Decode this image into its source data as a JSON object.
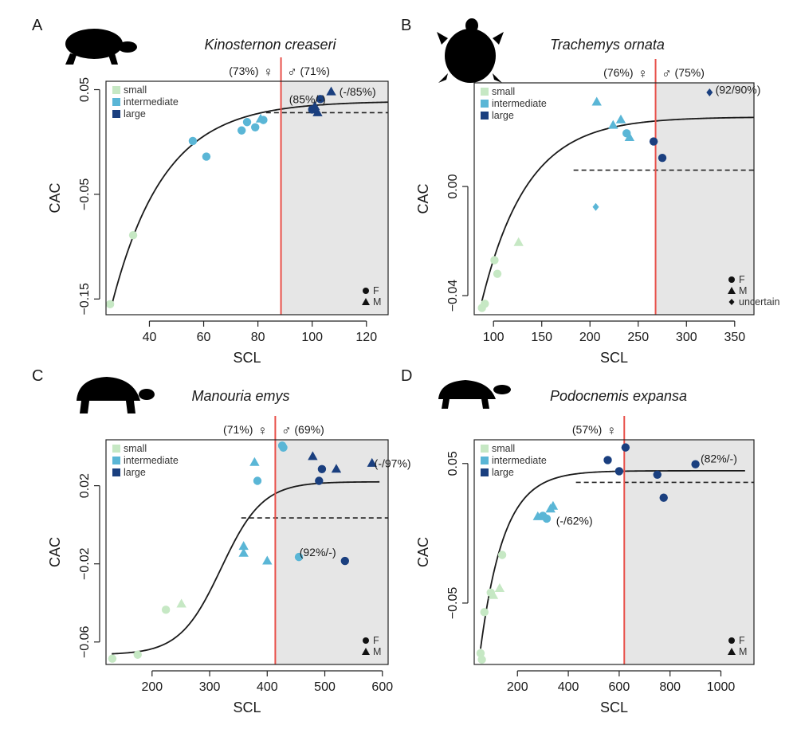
{
  "colors": {
    "small": "#c6e8c4",
    "intermediate": "#5ab6d6",
    "large": "#1a3f7f",
    "threshold": "#e8504a",
    "shade": "#e6e6e6",
    "curve": "#1a1a1a"
  },
  "legend": {
    "small": "small",
    "intermediate": "intermediate",
    "large": "large"
  },
  "shape_legend": {
    "F": "F",
    "M": "M",
    "uncertain": "uncertain"
  },
  "female_symbol": "♀",
  "male_symbol": "♂",
  "chart_data": [
    {
      "type": "scatter",
      "letter": "A",
      "title": "Kinosternon creaseri",
      "xlabel": "SCL",
      "ylabel": "CAC",
      "xlim": [
        24,
        128
      ],
      "ylim": [
        -0.165,
        0.058
      ],
      "xticks": [
        "40",
        "60",
        "80",
        "100",
        "120"
      ],
      "xtick_values": [
        40,
        60,
        80,
        100,
        120
      ],
      "yticks": [
        "0.05",
        "−0.05",
        "−0.15"
      ],
      "ytick_values": [
        0.05,
        -0.05,
        -0.15
      ],
      "threshold_x": 88.5,
      "dashed_y": 0.028,
      "dashed_x_start": 83,
      "curve": {
        "kind": "exp",
        "a": 0.039,
        "b": 0.196,
        "c": 0.052,
        "x0": 26
      },
      "female_label": "(73%)",
      "male_label": "(71%)",
      "shape_legend_keys": [
        "F",
        "M"
      ],
      "points": [
        {
          "x": 25.5,
          "y": -0.155,
          "size": "small",
          "shape": "circle"
        },
        {
          "x": 34,
          "y": -0.089,
          "size": "small",
          "shape": "circle"
        },
        {
          "x": 56,
          "y": 0.001,
          "size": "intermediate",
          "shape": "circle"
        },
        {
          "x": 61,
          "y": -0.014,
          "size": "intermediate",
          "shape": "circle"
        },
        {
          "x": 74,
          "y": 0.011,
          "size": "intermediate",
          "shape": "circle"
        },
        {
          "x": 76,
          "y": 0.019,
          "size": "intermediate",
          "shape": "circle"
        },
        {
          "x": 79,
          "y": 0.014,
          "size": "intermediate",
          "shape": "circle"
        },
        {
          "x": 81,
          "y": 0.022,
          "size": "intermediate",
          "shape": "triangle"
        },
        {
          "x": 82,
          "y": 0.021,
          "size": "intermediate",
          "shape": "circle"
        },
        {
          "x": 100,
          "y": 0.031,
          "size": "large",
          "shape": "circle"
        },
        {
          "x": 101,
          "y": 0.034,
          "size": "large",
          "shape": "triangle"
        },
        {
          "x": 102,
          "y": 0.028,
          "size": "large",
          "shape": "triangle"
        },
        {
          "x": 103,
          "y": 0.041,
          "size": "large",
          "shape": "circle"
        },
        {
          "x": 107,
          "y": 0.048,
          "size": "large",
          "shape": "triangle"
        }
      ],
      "annotations": [
        {
          "text": "(85%/-)",
          "x": 91.5,
          "y": 0.041
        },
        {
          "text": "(-/85%)",
          "x": 110,
          "y": 0.048
        }
      ]
    },
    {
      "type": "scatter",
      "letter": "B",
      "title": "Trachemys ornata",
      "xlabel": "SCL",
      "ylabel": "CAC",
      "xlim": [
        80,
        370
      ],
      "ylim": [
        -0.047,
        0.038
      ],
      "xticks": [
        "100",
        "150",
        "200",
        "250",
        "300",
        "350"
      ],
      "xtick_values": [
        100,
        150,
        200,
        250,
        300,
        350
      ],
      "yticks": [
        "0.00",
        "−0.04"
      ],
      "ytick_values": [
        0,
        -0.04
      ],
      "threshold_x": 268,
      "dashed_y": 0.006,
      "dashed_x_start": 183,
      "curve": {
        "kind": "exp",
        "a": 0.0255,
        "b": 0.0675,
        "c": 0.0212,
        "x0": 88
      },
      "female_label": "(76%)",
      "male_label": "(75%)",
      "shape_legend_keys": [
        "F",
        "M",
        "uncertain"
      ],
      "points": [
        {
          "x": 88,
          "y": -0.0445,
          "size": "small",
          "shape": "circle"
        },
        {
          "x": 91,
          "y": -0.043,
          "size": "small",
          "shape": "circle"
        },
        {
          "x": 101,
          "y": -0.027,
          "size": "small",
          "shape": "circle"
        },
        {
          "x": 104,
          "y": -0.032,
          "size": "small",
          "shape": "circle"
        },
        {
          "x": 126,
          "y": -0.0205,
          "size": "small",
          "shape": "triangle"
        },
        {
          "x": 206,
          "y": -0.0075,
          "size": "intermediate",
          "shape": "diamond"
        },
        {
          "x": 207,
          "y": 0.031,
          "size": "intermediate",
          "shape": "triangle"
        },
        {
          "x": 224,
          "y": 0.0225,
          "size": "intermediate",
          "shape": "triangle"
        },
        {
          "x": 232,
          "y": 0.0245,
          "size": "intermediate",
          "shape": "triangle"
        },
        {
          "x": 238,
          "y": 0.0195,
          "size": "intermediate",
          "shape": "circle"
        },
        {
          "x": 241,
          "y": 0.018,
          "size": "intermediate",
          "shape": "triangle"
        },
        {
          "x": 266,
          "y": 0.0165,
          "size": "large",
          "shape": "circle"
        },
        {
          "x": 275,
          "y": 0.0105,
          "size": "large",
          "shape": "circle"
        },
        {
          "x": 324,
          "y": 0.0345,
          "size": "large",
          "shape": "diamond"
        }
      ],
      "annotations": [
        {
          "text": "(92/90%)",
          "x": 330,
          "y": 0.0355
        }
      ]
    },
    {
      "type": "scatter",
      "letter": "C",
      "title": "Manouria emys",
      "xlabel": "SCL",
      "ylabel": "CAC",
      "xlim": [
        120,
        610
      ],
      "ylim": [
        -0.0715,
        0.0435
      ],
      "xticks": [
        "200",
        "300",
        "400",
        "500",
        "600"
      ],
      "xtick_values": [
        200,
        300,
        400,
        500,
        600
      ],
      "yticks": [
        "0.02",
        "−0.02",
        "−0.06"
      ],
      "ytick_values": [
        0.02,
        -0.02,
        -0.06
      ],
      "threshold_x": 414,
      "dashed_y": 0.0035,
      "dashed_x_start": 355,
      "curve": {
        "kind": "logistic",
        "lower": -0.0665,
        "upper": 0.022,
        "mid": 320,
        "scale": 36,
        "x0": 130,
        "x1": 595
      },
      "female_label": "(71%)",
      "male_label": "(69%)",
      "shape_legend_keys": [
        "F",
        "M"
      ],
      "points": [
        {
          "x": 131,
          "y": -0.0685,
          "size": "small",
          "shape": "circle"
        },
        {
          "x": 175,
          "y": -0.0665,
          "size": "small",
          "shape": "circle"
        },
        {
          "x": 224,
          "y": -0.0435,
          "size": "small",
          "shape": "circle"
        },
        {
          "x": 251,
          "y": -0.0405,
          "size": "small",
          "shape": "triangle"
        },
        {
          "x": 359,
          "y": -0.011,
          "size": "intermediate",
          "shape": "triangle"
        },
        {
          "x": 359,
          "y": -0.0145,
          "size": "intermediate",
          "shape": "triangle"
        },
        {
          "x": 378,
          "y": 0.032,
          "size": "intermediate",
          "shape": "triangle"
        },
        {
          "x": 383,
          "y": 0.0225,
          "size": "intermediate",
          "shape": "circle"
        },
        {
          "x": 400,
          "y": -0.0185,
          "size": "intermediate",
          "shape": "triangle"
        },
        {
          "x": 426,
          "y": 0.0405,
          "size": "intermediate",
          "shape": "circle"
        },
        {
          "x": 428,
          "y": 0.0395,
          "size": "intermediate",
          "shape": "circle"
        },
        {
          "x": 455,
          "y": -0.0165,
          "size": "intermediate",
          "shape": "circle"
        },
        {
          "x": 479,
          "y": 0.035,
          "size": "large",
          "shape": "triangle"
        },
        {
          "x": 490,
          "y": 0.0225,
          "size": "large",
          "shape": "circle"
        },
        {
          "x": 495,
          "y": 0.0285,
          "size": "large",
          "shape": "circle"
        },
        {
          "x": 520,
          "y": 0.0285,
          "size": "large",
          "shape": "triangle"
        },
        {
          "x": 535,
          "y": -0.0185,
          "size": "large",
          "shape": "circle"
        },
        {
          "x": 582,
          "y": 0.0315,
          "size": "large",
          "shape": "triangle"
        }
      ],
      "annotations": [
        {
          "text": "(92%/-)",
          "x": 456,
          "y": -0.014
        },
        {
          "text": "(-/97%)",
          "x": 586,
          "y": 0.0315
        }
      ]
    },
    {
      "type": "scatter",
      "letter": "D",
      "title": "Podocnemis expansa",
      "xlabel": "SCL",
      "ylabel": "CAC",
      "xlim": [
        30,
        1130
      ],
      "ylim": [
        -0.094,
        0.067
      ],
      "xticks": [
        "200",
        "400",
        "600",
        "800",
        "1000"
      ],
      "xtick_values": [
        200,
        400,
        600,
        800,
        1000
      ],
      "yticks": [
        "0.05",
        "−0.05"
      ],
      "ytick_values": [
        0.05,
        -0.05
      ],
      "threshold_x": 620,
      "dashed_y": 0.0365,
      "dashed_x_start": 430,
      "curve": {
        "kind": "exp",
        "a": 0.0448,
        "b": 0.1275,
        "c": 0.0108,
        "x0": 55,
        "x1": 1095
      },
      "female_label": "(57%)",
      "male_label": "",
      "shape_legend_keys": [
        "F",
        "M"
      ],
      "points": [
        {
          "x": 55,
          "y": -0.086,
          "size": "small",
          "shape": "circle"
        },
        {
          "x": 60,
          "y": -0.0905,
          "size": "small",
          "shape": "circle"
        },
        {
          "x": 70,
          "y": -0.0565,
          "size": "small",
          "shape": "circle"
        },
        {
          "x": 95,
          "y": -0.0425,
          "size": "small",
          "shape": "circle"
        },
        {
          "x": 105,
          "y": -0.0445,
          "size": "small",
          "shape": "triangle"
        },
        {
          "x": 130,
          "y": -0.0395,
          "size": "small",
          "shape": "triangle"
        },
        {
          "x": 140,
          "y": -0.0155,
          "size": "small",
          "shape": "circle"
        },
        {
          "x": 280,
          "y": 0.012,
          "size": "intermediate",
          "shape": "triangle"
        },
        {
          "x": 300,
          "y": 0.0125,
          "size": "intermediate",
          "shape": "circle"
        },
        {
          "x": 315,
          "y": 0.0105,
          "size": "intermediate",
          "shape": "circle"
        },
        {
          "x": 330,
          "y": 0.0175,
          "size": "intermediate",
          "shape": "triangle"
        },
        {
          "x": 340,
          "y": 0.0195,
          "size": "intermediate",
          "shape": "triangle"
        },
        {
          "x": 555,
          "y": 0.0525,
          "size": "large",
          "shape": "circle"
        },
        {
          "x": 600,
          "y": 0.0445,
          "size": "large",
          "shape": "circle"
        },
        {
          "x": 625,
          "y": 0.0615,
          "size": "large",
          "shape": "circle"
        },
        {
          "x": 750,
          "y": 0.042,
          "size": "large",
          "shape": "circle"
        },
        {
          "x": 775,
          "y": 0.0255,
          "size": "large",
          "shape": "circle"
        },
        {
          "x": 900,
          "y": 0.0495,
          "size": "large",
          "shape": "circle"
        }
      ],
      "annotations": [
        {
          "text": "(-/62%)",
          "x": 352,
          "y": 0.009
        },
        {
          "text": "(82%/-)",
          "x": 920,
          "y": 0.0535
        }
      ]
    }
  ]
}
